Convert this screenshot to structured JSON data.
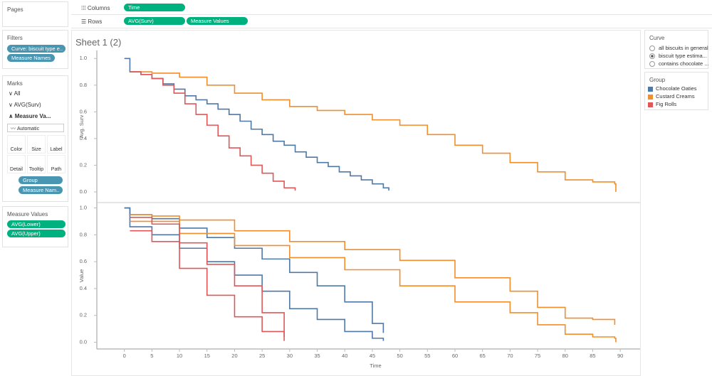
{
  "pages": {
    "title": "Pages"
  },
  "filters": {
    "title": "Filters",
    "pills": [
      "Curve: biscuit type e..",
      "Measure Names"
    ]
  },
  "marks": {
    "title": "Marks",
    "rows": [
      "All",
      "AVG(Surv)",
      "Measure Va..."
    ],
    "mark_type": "Automatic",
    "buttons": [
      "Color",
      "Size",
      "Label",
      "Detail",
      "Tooltip",
      "Path"
    ],
    "pills": [
      "Group",
      "Measure Nam.."
    ]
  },
  "measure_values": {
    "title": "Measure Values",
    "pills": [
      "AVG(Lower)",
      "AVG(Upper)"
    ]
  },
  "shelves": {
    "columns": {
      "label": "Columns",
      "pills": [
        "Time"
      ]
    },
    "rows": {
      "label": "Rows",
      "pills": [
        "AVG(Surv)",
        "Measure Values"
      ]
    }
  },
  "sheet_title": "Sheet 1 (2)",
  "curve_filter": {
    "title": "Curve",
    "options": [
      "all biscuits in general",
      "biscuit type estima...",
      "contains chocolate ..."
    ],
    "selected": 1
  },
  "legend": {
    "title": "Group"
  },
  "chart_data": [
    {
      "type": "line",
      "step": true,
      "y_label": "Avg. Surv",
      "xlim": [
        -5,
        93.6
      ],
      "ylim": [
        -0.08,
        1.06
      ],
      "yticks": [
        {
          "value": 0,
          "label": "0.0"
        },
        0.2,
        0.4,
        0.6,
        0.8,
        {
          "value": 1,
          "label": "1.0"
        }
      ],
      "series": [
        {
          "name": "Chocolate Oaties",
          "color": "#4e79a7",
          "x": [
            0,
            1,
            3,
            5,
            7,
            9,
            11,
            13,
            15,
            17,
            19,
            21,
            23,
            25,
            27,
            29,
            31,
            33,
            35,
            37,
            39,
            41,
            43,
            45,
            47,
            48
          ],
          "values": [
            1,
            0.9,
            0.88,
            0.85,
            0.81,
            0.77,
            0.72,
            0.69,
            0.66,
            0.62,
            0.58,
            0.53,
            0.47,
            0.43,
            0.38,
            0.35,
            0.3,
            0.26,
            0.22,
            0.19,
            0.15,
            0.12,
            0.09,
            0.06,
            0.03,
            0.01
          ]
        },
        {
          "name": "Custard Creams",
          "color": "#f28e2b",
          "x": [
            1,
            5,
            10,
            15,
            20,
            25,
            30,
            35,
            40,
            45,
            50,
            55,
            60,
            65,
            70,
            75,
            80,
            85,
            89,
            89.2
          ],
          "values": [
            0.9,
            0.89,
            0.86,
            0.8,
            0.74,
            0.69,
            0.64,
            0.61,
            0.58,
            0.54,
            0.5,
            0.43,
            0.35,
            0.29,
            0.22,
            0.15,
            0.09,
            0.075,
            0.06,
            0.0
          ]
        },
        {
          "name": "Fig Rolls",
          "color": "#e15759",
          "x": [
            1,
            3,
            5,
            7,
            9,
            11,
            13,
            15,
            17,
            19,
            21,
            23,
            25,
            27,
            29,
            31
          ],
          "values": [
            0.9,
            0.88,
            0.85,
            0.8,
            0.74,
            0.66,
            0.58,
            0.5,
            0.42,
            0.33,
            0.27,
            0.2,
            0.14,
            0.08,
            0.03,
            0.01
          ]
        }
      ]
    },
    {
      "type": "line",
      "step": true,
      "y_label": "Value",
      "x_label": "Time",
      "xlim": [
        -5,
        93.6
      ],
      "ylim": [
        -0.05,
        1.04
      ],
      "xticks": [
        0,
        5,
        10,
        15,
        20,
        25,
        30,
        35,
        40,
        45,
        50,
        55,
        60,
        65,
        70,
        75,
        80,
        85,
        90
      ],
      "yticks": [
        {
          "value": 0,
          "label": "0.0"
        },
        0.2,
        0.4,
        0.6,
        0.8,
        {
          "value": 1,
          "label": "1.0"
        }
      ],
      "series": [
        {
          "name": "Chocolate Oaties",
          "measure": "AVG(Upper)",
          "color": "#4e79a7",
          "x": [
            0,
            1,
            5,
            10,
            15,
            20,
            25,
            30,
            35,
            40,
            45,
            47
          ],
          "values": [
            1,
            0.95,
            0.92,
            0.85,
            0.78,
            0.7,
            0.62,
            0.52,
            0.42,
            0.3,
            0.14,
            0.07
          ]
        },
        {
          "name": "Chocolate Oaties",
          "measure": "AVG(Lower)",
          "color": "#4e79a7",
          "x": [
            0,
            1,
            5,
            10,
            15,
            20,
            25,
            30,
            35,
            40,
            45,
            47
          ],
          "values": [
            1,
            0.86,
            0.8,
            0.7,
            0.6,
            0.5,
            0.38,
            0.25,
            0.17,
            0.08,
            0.03,
            0.01
          ]
        },
        {
          "name": "Custard Creams",
          "measure": "AVG(Upper)",
          "color": "#f28e2b",
          "x": [
            1,
            5,
            10,
            20,
            30,
            40,
            50,
            60,
            70,
            75,
            80,
            85,
            89
          ],
          "values": [
            0.95,
            0.94,
            0.91,
            0.83,
            0.75,
            0.69,
            0.61,
            0.48,
            0.38,
            0.26,
            0.18,
            0.17,
            0.13
          ]
        },
        {
          "name": "Custard Creams",
          "measure": "AVG(Lower)",
          "color": "#f28e2b",
          "x": [
            1,
            10,
            20,
            30,
            40,
            50,
            60,
            70,
            75,
            80,
            85,
            89,
            89.2
          ],
          "values": [
            0.9,
            0.81,
            0.72,
            0.63,
            0.54,
            0.42,
            0.3,
            0.22,
            0.13,
            0.06,
            0.04,
            0.03,
            0.0
          ]
        },
        {
          "name": "Fig Rolls",
          "measure": "AVG(Upper)",
          "color": "#e15759",
          "x": [
            1,
            5,
            10,
            15,
            20,
            25,
            29
          ],
          "values": [
            0.93,
            0.88,
            0.74,
            0.58,
            0.42,
            0.22,
            0.04
          ]
        },
        {
          "name": "Fig Rolls",
          "measure": "AVG(Lower)",
          "color": "#e15759",
          "x": [
            1,
            5,
            10,
            15,
            20,
            25,
            29
          ],
          "values": [
            0.83,
            0.75,
            0.55,
            0.35,
            0.19,
            0.08,
            0.01
          ]
        }
      ]
    }
  ]
}
